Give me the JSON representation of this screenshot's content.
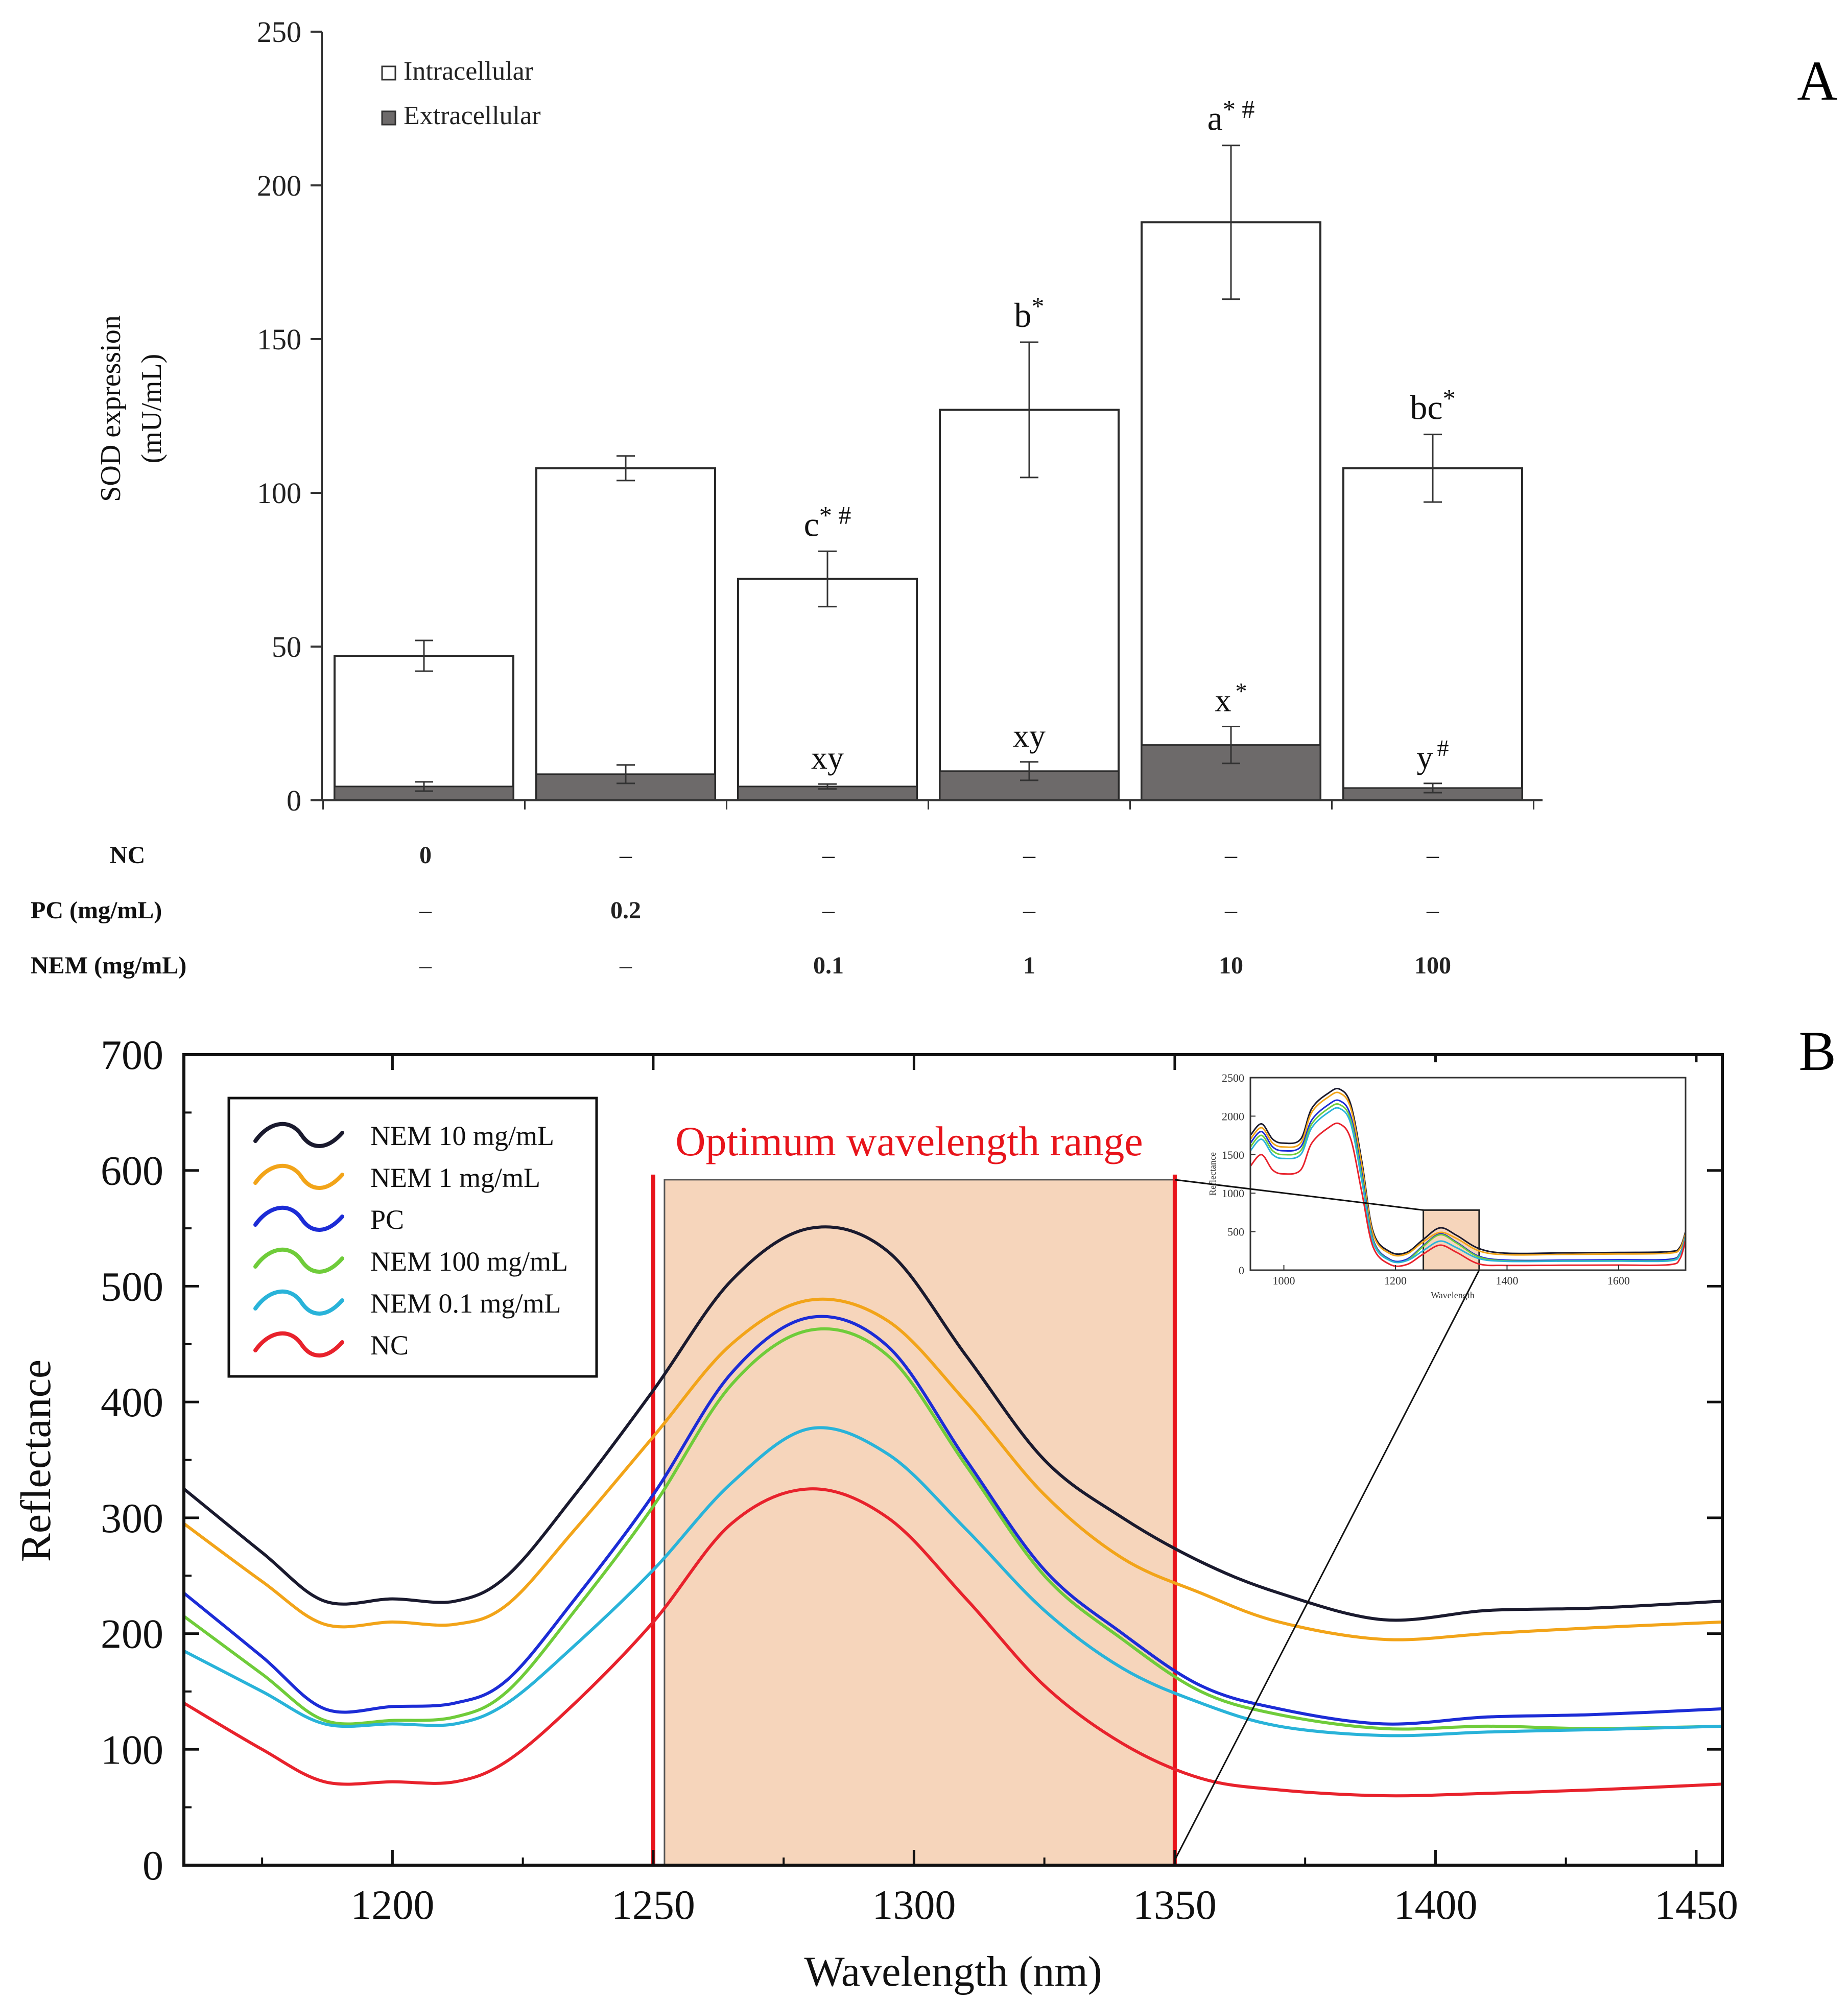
{
  "panel_a": {
    "panel_label": "A",
    "legend": {
      "intracellular": "Intracellular",
      "extracellular": "Extracellular"
    },
    "colors": {
      "intracellular": "#ffffff",
      "extracellular": "#6d6a6a"
    }
  },
  "panel_b": {
    "panel_label": "B",
    "highlight_label": "Optimum wavelength range",
    "highlight_range": [
      1250,
      1350
    ],
    "colors": {
      "highlight_fill": "#f6d5bb",
      "highlight_line": "#e8141b",
      "highlight_text": "#e8141b"
    }
  },
  "chart_data": [
    {
      "type": "bar",
      "title": "",
      "xlabel": "",
      "ylabel": "SOD expression\n(mU/mL)",
      "ylim": [
        0,
        250
      ],
      "yticks": [
        0,
        50,
        100,
        150,
        200,
        250
      ],
      "categories": [
        "NC 0",
        "PC 0.2 mg/mL",
        "NEM 0.1 mg/mL",
        "NEM 1 mg/mL",
        "NEM 10 mg/mL",
        "NEM 100 mg/mL"
      ],
      "series": [
        {
          "name": "Intracellular",
          "values": [
            47,
            108,
            72,
            127,
            188,
            108
          ],
          "errors": [
            5,
            4,
            9,
            22,
            25,
            11
          ],
          "labels": [
            "",
            "",
            "c*#",
            "b*",
            "a*#",
            "bc*"
          ]
        },
        {
          "name": "Extracellular",
          "values": [
            4.5,
            8.5,
            4.5,
            9.5,
            18,
            4
          ],
          "errors": [
            1.5,
            3,
            0.8,
            3,
            6,
            1.5
          ],
          "labels": [
            "",
            "",
            "xy",
            "xy",
            "x*",
            "y#"
          ]
        }
      ],
      "treatment_table": {
        "rows": [
          {
            "label": "NC",
            "values": [
              "0",
              "–",
              "–",
              "–",
              "–",
              "–"
            ]
          },
          {
            "label": "PC (mg/mL)",
            "values": [
              "–",
              "0.2",
              "–",
              "–",
              "–",
              "–"
            ]
          },
          {
            "label": "NEM (mg/mL)",
            "values": [
              "–",
              "–",
              "0.1",
              "1",
              "10",
              "100"
            ]
          }
        ]
      }
    },
    {
      "type": "line",
      "title": "",
      "xlabel": "Wavelength (nm)",
      "ylabel": "Reflectance",
      "xlim": [
        1160,
        1455
      ],
      "ylim": [
        0,
        700
      ],
      "xticks": [
        1200,
        1250,
        1300,
        1350,
        1400,
        1450
      ],
      "yticks": [
        0,
        100,
        200,
        300,
        400,
        500,
        600,
        700
      ],
      "legend_position": "top-left",
      "x": [
        1160,
        1175,
        1187,
        1200,
        1212,
        1222,
        1235,
        1250,
        1265,
        1280,
        1295,
        1310,
        1325,
        1340,
        1355,
        1370,
        1390,
        1410,
        1430,
        1455
      ],
      "series": [
        {
          "name": "NEM 10 mg/mL",
          "color": "#1a1a2e",
          "values": [
            325,
            270,
            228,
            230,
            228,
            250,
            320,
            410,
            505,
            550,
            530,
            440,
            350,
            300,
            262,
            235,
            212,
            220,
            222,
            228
          ]
        },
        {
          "name": "NEM 1 mg/mL",
          "color": "#f2a419",
          "values": [
            295,
            245,
            208,
            210,
            208,
            225,
            290,
            370,
            450,
            488,
            470,
            400,
            320,
            265,
            235,
            210,
            195,
            200,
            205,
            210
          ]
        },
        {
          "name": "PC",
          "color": "#1c2cd6",
          "values": [
            235,
            180,
            135,
            137,
            140,
            160,
            230,
            320,
            425,
            473,
            448,
            350,
            255,
            200,
            155,
            135,
            122,
            128,
            130,
            135
          ]
        },
        {
          "name": "NEM 100 mg/mL",
          "color": "#6fcc3a",
          "values": [
            215,
            165,
            125,
            125,
            128,
            150,
            220,
            310,
            415,
            462,
            440,
            345,
            250,
            195,
            150,
            130,
            118,
            120,
            118,
            120
          ]
        },
        {
          "name": "NEM 0.1 mg/mL",
          "color": "#29b3d9",
          "values": [
            185,
            150,
            122,
            122,
            122,
            140,
            190,
            255,
            330,
            377,
            355,
            290,
            220,
            170,
            140,
            120,
            112,
            115,
            117,
            120
          ]
        },
        {
          "name": "NC",
          "color": "#e8222c",
          "values": [
            140,
            100,
            72,
            72,
            72,
            90,
            140,
            210,
            295,
            325,
            300,
            230,
            155,
            105,
            75,
            65,
            60,
            62,
            65,
            70
          ]
        }
      ]
    },
    {
      "type": "line",
      "title": "",
      "xlabel": "Wavelength",
      "ylabel": "Reflectance",
      "xlim": [
        940,
        1720
      ],
      "ylim": [
        0,
        2500
      ],
      "xticks": [
        1000,
        1200,
        1400,
        1600
      ],
      "yticks": [
        0,
        500,
        1000,
        1500,
        2000,
        2500
      ],
      "highlight_range": [
        1250,
        1350
      ],
      "x": [
        940,
        960,
        980,
        1000,
        1030,
        1050,
        1080,
        1100,
        1120,
        1140,
        1160,
        1190,
        1220,
        1250,
        1280,
        1310,
        1350,
        1400,
        1500,
        1600,
        1690,
        1710,
        1720
      ],
      "series": [
        {
          "name": "NEM 10 mg/mL",
          "color": "#1a1a2e",
          "values": [
            1750,
            1900,
            1700,
            1650,
            1700,
            2100,
            2300,
            2350,
            2150,
            1400,
            500,
            240,
            230,
            400,
            550,
            450,
            280,
            220,
            225,
            230,
            240,
            300,
            500
          ]
        },
        {
          "name": "NEM 1 mg/mL",
          "color": "#f2a419",
          "values": [
            1700,
            1850,
            1650,
            1600,
            1650,
            2050,
            2250,
            2300,
            2100,
            1350,
            470,
            215,
            210,
            370,
            490,
            410,
            250,
            200,
            205,
            210,
            220,
            280,
            480
          ]
        },
        {
          "name": "PC",
          "color": "#1c2cd6",
          "values": [
            1650,
            1800,
            1600,
            1550,
            1600,
            1950,
            2150,
            2200,
            2000,
            1250,
            400,
            140,
            140,
            320,
            470,
            360,
            180,
            130,
            130,
            135,
            140,
            220,
            450
          ]
        },
        {
          "name": "NEM 100 mg/mL",
          "color": "#6fcc3a",
          "values": [
            1600,
            1750,
            1550,
            1500,
            1550,
            1900,
            2100,
            2150,
            1950,
            1200,
            380,
            128,
            125,
            310,
            460,
            350,
            170,
            120,
            120,
            122,
            125,
            210,
            440
          ]
        },
        {
          "name": "NEM 0.1 mg/mL",
          "color": "#29b3d9",
          "values": [
            1550,
            1700,
            1500,
            1450,
            1500,
            1850,
            2050,
            2100,
            1900,
            1150,
            360,
            125,
            122,
            255,
            377,
            290,
            150,
            115,
            117,
            118,
            120,
            200,
            430
          ]
        },
        {
          "name": "NC",
          "color": "#e8222c",
          "values": [
            1350,
            1500,
            1300,
            1250,
            1300,
            1650,
            1850,
            1900,
            1700,
            1000,
            300,
            75,
            72,
            210,
            325,
            230,
            80,
            62,
            64,
            66,
            70,
            150,
            400
          ]
        }
      ]
    }
  ]
}
